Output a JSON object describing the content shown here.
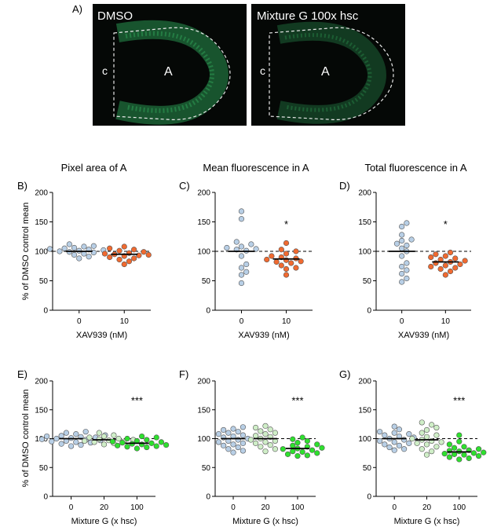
{
  "panel_a": {
    "label": "A)",
    "images": [
      {
        "title": "DMSO",
        "region_a": "A",
        "region_c": "c"
      },
      {
        "title": "Mixture G 100x hsc",
        "region_a": "A",
        "region_c": "c"
      }
    ]
  },
  "y_axis_label": "% of DMSO control mean",
  "colors": {
    "dmso": "#b8cfe6",
    "xav": "#f06a30",
    "mixg20": "#cfeec7",
    "mixg100": "#2ee02e",
    "mean_line": "#000000",
    "ref_line": "#000000"
  },
  "chart_data": [
    {
      "id": "B",
      "panel_label": "B)",
      "type": "scatter",
      "title": "Pixel area of A",
      "xlabel": "XAV939 (nM)",
      "ylabel": "% of DMSO control mean",
      "ylim": [
        0,
        200
      ],
      "yticks": [
        0,
        50,
        100,
        150,
        200
      ],
      "categories": [
        "0",
        "10"
      ],
      "reference_line": 100,
      "significance": "",
      "groups": [
        {
          "category": "0",
          "color_key": "dmso",
          "mean": 100,
          "values": [
            112,
            109,
            108,
            106,
            105,
            104,
            103,
            102,
            101,
            100,
            99,
            98,
            96,
            94,
            91,
            88
          ]
        },
        {
          "category": "10",
          "color_key": "xav",
          "mean": 95,
          "values": [
            108,
            105,
            103,
            101,
            99,
            97,
            96,
            95,
            94,
            93,
            92,
            90,
            88,
            86,
            83,
            78
          ]
        }
      ]
    },
    {
      "id": "C",
      "panel_label": "C)",
      "type": "scatter",
      "title": "Mean fluorescence in A",
      "xlabel": "XAV939 (nM)",
      "ylabel": "",
      "ylim": [
        0,
        200
      ],
      "yticks": [
        0,
        50,
        100,
        150,
        200
      ],
      "categories": [
        "0",
        "10"
      ],
      "reference_line": 100,
      "significance": "*",
      "groups": [
        {
          "category": "0",
          "color_key": "dmso",
          "mean": 100,
          "values": [
            168,
            155,
            116,
            112,
            108,
            106,
            104,
            103,
            101,
            92,
            78,
            72,
            65,
            60,
            46
          ]
        },
        {
          "category": "10",
          "color_key": "xav",
          "mean": 87,
          "values": [
            114,
            103,
            100,
            96,
            92,
            90,
            88,
            86,
            85,
            83,
            82,
            80,
            76,
            72,
            70,
            60
          ]
        }
      ]
    },
    {
      "id": "D",
      "panel_label": "D)",
      "type": "scatter",
      "title": "Total fluorescence in A",
      "xlabel": "XAV939 (nM)",
      "ylabel": "",
      "ylim": [
        0,
        200
      ],
      "yticks": [
        0,
        50,
        100,
        150,
        200
      ],
      "categories": [
        "0",
        "10"
      ],
      "reference_line": 100,
      "significance": "*",
      "groups": [
        {
          "category": "0",
          "color_key": "dmso",
          "mean": 100,
          "values": [
            148,
            142,
            128,
            120,
            118,
            113,
            110,
            105,
            100,
            92,
            80,
            74,
            68,
            62,
            54,
            48
          ]
        },
        {
          "category": "10",
          "color_key": "xav",
          "mean": 82,
          "values": [
            98,
            95,
            92,
            90,
            88,
            86,
            84,
            82,
            80,
            78,
            76,
            74,
            72,
            70,
            66,
            60
          ]
        }
      ]
    },
    {
      "id": "E",
      "panel_label": "E)",
      "type": "scatter",
      "title": "",
      "xlabel": "Mixture G (x hsc)",
      "ylabel": "% of DMSO control mean",
      "ylim": [
        0,
        200
      ],
      "yticks": [
        0,
        50,
        100,
        150,
        200
      ],
      "categories": [
        "0",
        "20",
        "100"
      ],
      "reference_line": 100,
      "significance": "***",
      "groups": [
        {
          "category": "0",
          "color_key": "dmso",
          "mean": 100,
          "values": [
            112,
            110,
            108,
            106,
            105,
            104,
            103,
            102,
            101,
            100,
            99,
            98,
            97,
            96,
            95,
            94,
            93,
            91,
            89,
            87
          ]
        },
        {
          "category": "20",
          "color_key": "mixg20",
          "mean": 98,
          "values": [
            110,
            106,
            104,
            102,
            100,
            99,
            98,
            97,
            96,
            95,
            94,
            92,
            90
          ]
        },
        {
          "category": "100",
          "color_key": "mixg100",
          "mean": 92,
          "values": [
            104,
            102,
            100,
            98,
            96,
            95,
            94,
            93,
            92,
            91,
            90,
            89,
            88,
            87,
            86,
            85,
            83
          ]
        }
      ]
    },
    {
      "id": "F",
      "panel_label": "F)",
      "type": "scatter",
      "title": "",
      "xlabel": "Mixture G (x hsc)",
      "ylabel": "",
      "ylim": [
        0,
        200
      ],
      "yticks": [
        0,
        50,
        100,
        150,
        200
      ],
      "categories": [
        "0",
        "20",
        "100"
      ],
      "reference_line": 100,
      "significance": "***",
      "groups": [
        {
          "category": "0",
          "color_key": "dmso",
          "mean": 100,
          "values": [
            120,
            117,
            115,
            112,
            110,
            108,
            106,
            104,
            102,
            100,
            98,
            96,
            94,
            92,
            90,
            88,
            85,
            82,
            79,
            76
          ]
        },
        {
          "category": "20",
          "color_key": "mixg20",
          "mean": 100,
          "values": [
            122,
            119,
            116,
            113,
            110,
            108,
            105,
            103,
            100,
            98,
            96,
            94,
            92,
            89,
            86,
            82,
            78
          ]
        },
        {
          "category": "100",
          "color_key": "mixg100",
          "mean": 83,
          "values": [
            102,
            99,
            96,
            93,
            90,
            88,
            86,
            84,
            83,
            82,
            80,
            78,
            77,
            75,
            73,
            71,
            70
          ]
        }
      ]
    },
    {
      "id": "G",
      "panel_label": "G)",
      "type": "scatter",
      "title": "",
      "xlabel": "Mixture G (x hsc)",
      "ylabel": "",
      "ylim": [
        0,
        200
      ],
      "yticks": [
        0,
        50,
        100,
        150,
        200
      ],
      "categories": [
        "0",
        "20",
        "100"
      ],
      "reference_line": 100,
      "significance": "***",
      "groups": [
        {
          "category": "0",
          "color_key": "dmso",
          "mean": 100,
          "values": [
            121,
            116,
            112,
            110,
            108,
            106,
            104,
            102,
            100,
            98,
            96,
            94,
            92,
            90,
            88,
            85,
            82,
            80
          ]
        },
        {
          "category": "20",
          "color_key": "mixg20",
          "mean": 98,
          "values": [
            128,
            124,
            119,
            115,
            110,
            106,
            103,
            100,
            98,
            96,
            94,
            92,
            90,
            86,
            82,
            78,
            72
          ]
        },
        {
          "category": "100",
          "color_key": "mixg100",
          "mean": 77,
          "values": [
            106,
            95,
            90,
            86,
            84,
            82,
            80,
            79,
            78,
            76,
            75,
            74,
            73,
            72,
            70,
            68,
            66,
            64
          ]
        }
      ]
    }
  ]
}
